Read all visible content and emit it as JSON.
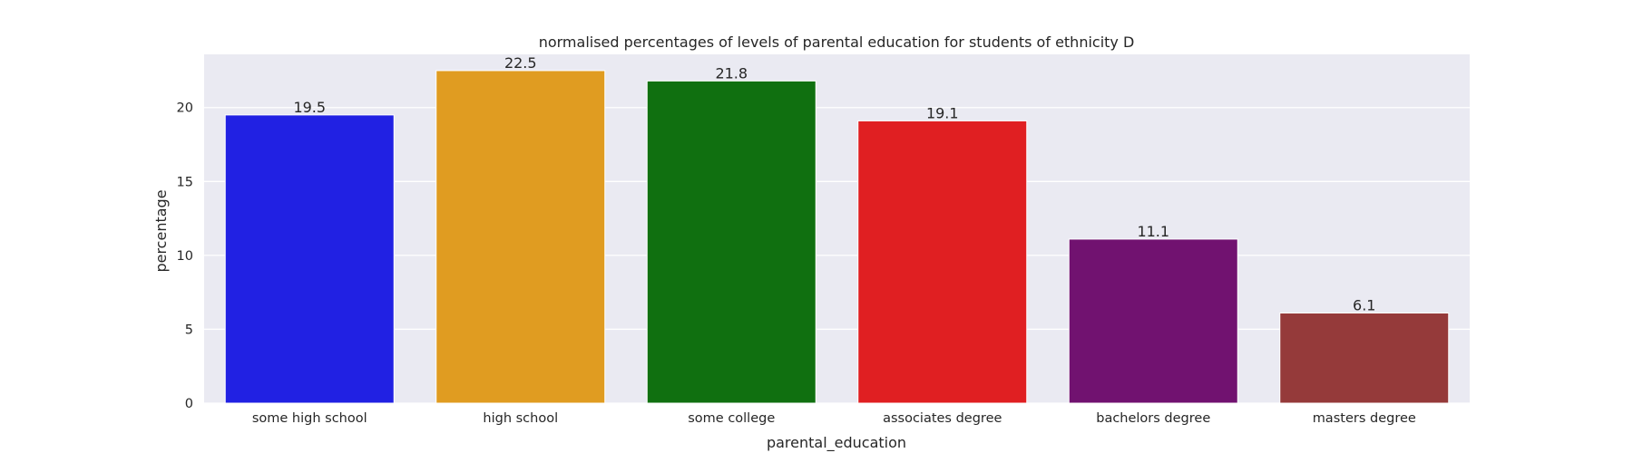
{
  "chart_data": {
    "type": "bar",
    "title": "normalised percentages of levels of parental education for students of ethnicity D",
    "xlabel": "parental_education",
    "ylabel": "percentage",
    "categories": [
      "some high school",
      "high school",
      "some college",
      "associates degree",
      "bachelors degree",
      "masters degree"
    ],
    "values": [
      19.5,
      22.5,
      21.8,
      19.1,
      11.1,
      6.1
    ],
    "data_labels": [
      "19.5",
      "22.5",
      "21.8",
      "19.1",
      "11.1",
      "6.1"
    ],
    "colors": [
      "#2121e3",
      "#e09c21",
      "#107010",
      "#e01f22",
      "#711270",
      "#953a3a"
    ],
    "yticks": [
      0,
      5,
      10,
      15,
      20
    ],
    "ylim": [
      0,
      23.6
    ],
    "grid": true,
    "background": "#eaeaf2",
    "grid_color": "#ffffff",
    "legend": "none"
  }
}
